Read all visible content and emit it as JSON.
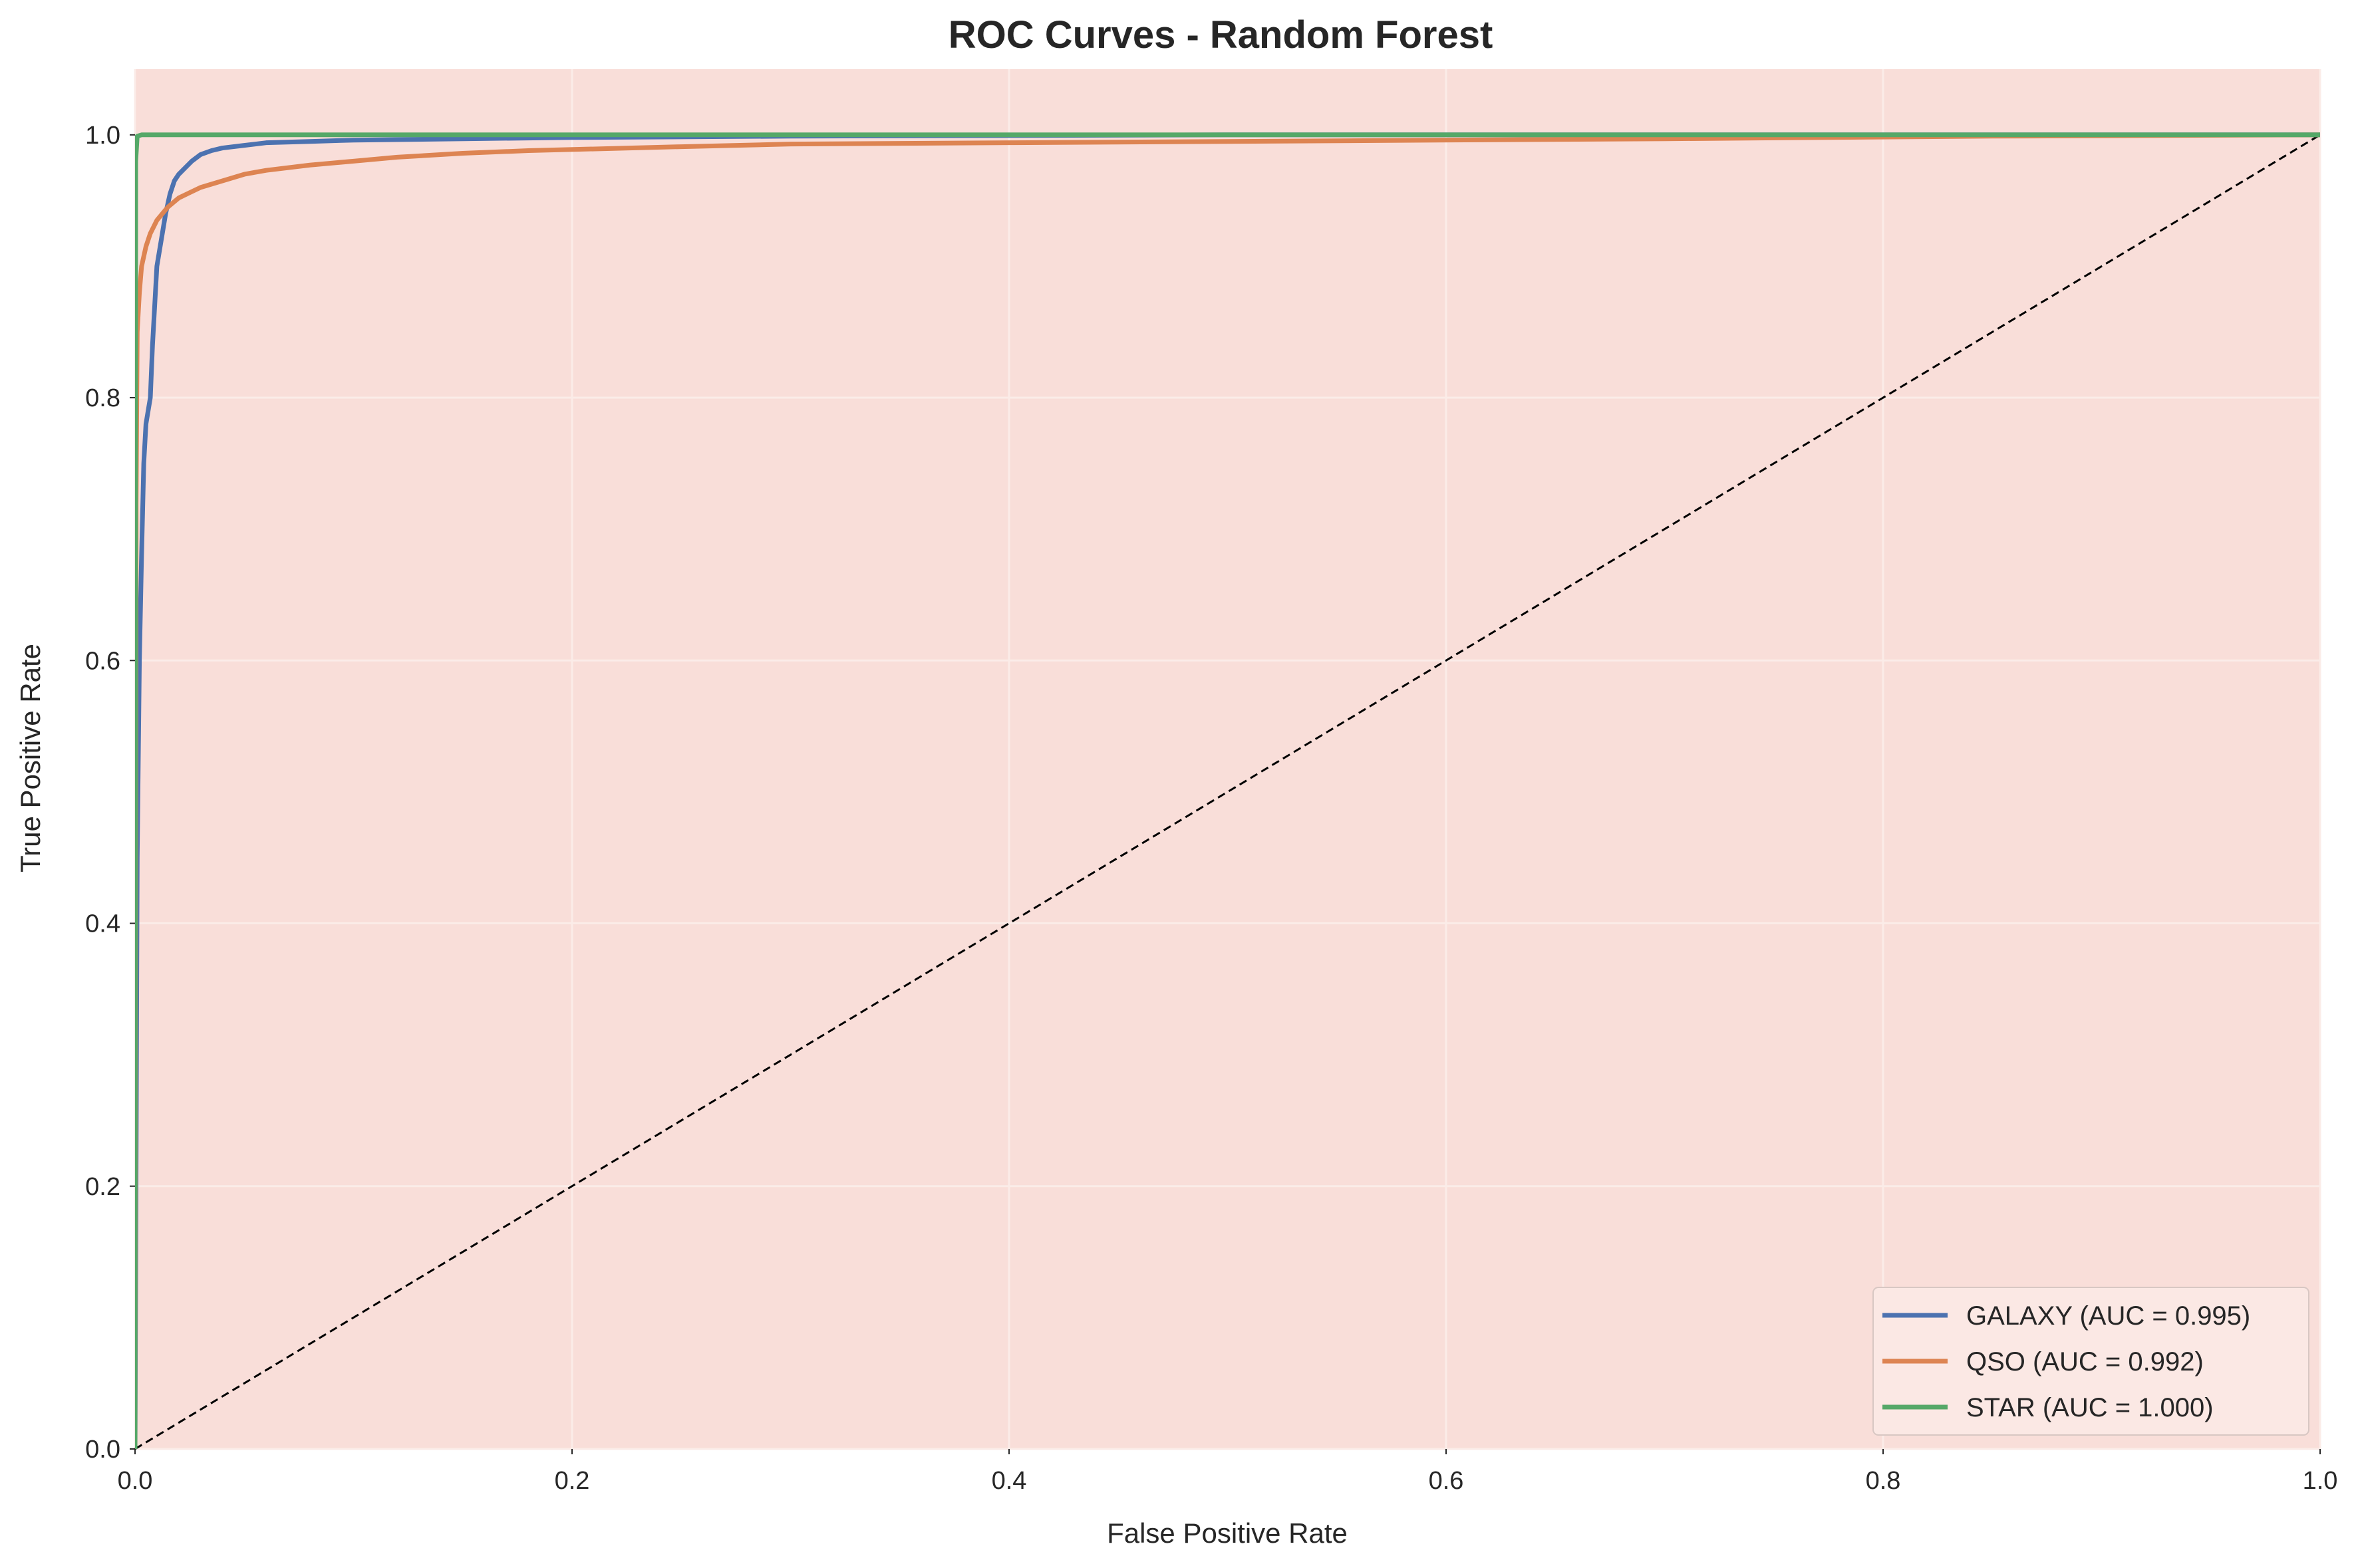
{
  "chart_data": {
    "type": "line",
    "title": "ROC Curves - Random Forest",
    "xlabel": "False Positive Rate",
    "ylabel": "True Positive Rate",
    "xlim": [
      0.0,
      1.0
    ],
    "ylim": [
      0.0,
      1.05
    ],
    "xticks": [
      0.0,
      0.2,
      0.4,
      0.6,
      0.8,
      1.0
    ],
    "xtick_labels": [
      "0.0",
      "0.2",
      "0.4",
      "0.6",
      "0.8",
      "1.0"
    ],
    "yticks": [
      0.0,
      0.2,
      0.4,
      0.6,
      0.8,
      1.0
    ],
    "ytick_labels": [
      "0.0",
      "0.2",
      "0.4",
      "0.6",
      "0.8",
      "1.0"
    ],
    "grid": true,
    "legend_position": "lower-right",
    "background_color": "#f9ded9",
    "grid_color": "#fbece8",
    "series": [
      {
        "name": "GALAXY (AUC = 0.995)",
        "color": "#4c72b0",
        "points": [
          [
            0,
            0
          ],
          [
            0.001,
            0.45
          ],
          [
            0.002,
            0.6
          ],
          [
            0.003,
            0.68
          ],
          [
            0.004,
            0.75
          ],
          [
            0.005,
            0.78
          ],
          [
            0.006,
            0.79
          ],
          [
            0.007,
            0.8
          ],
          [
            0.008,
            0.84
          ],
          [
            0.009,
            0.87
          ],
          [
            0.01,
            0.9
          ],
          [
            0.012,
            0.92
          ],
          [
            0.014,
            0.94
          ],
          [
            0.016,
            0.955
          ],
          [
            0.018,
            0.965
          ],
          [
            0.02,
            0.97
          ],
          [
            0.023,
            0.975
          ],
          [
            0.026,
            0.98
          ],
          [
            0.03,
            0.985
          ],
          [
            0.035,
            0.988
          ],
          [
            0.04,
            0.99
          ],
          [
            0.05,
            0.992
          ],
          [
            0.06,
            0.994
          ],
          [
            0.08,
            0.995
          ],
          [
            0.1,
            0.996
          ],
          [
            0.15,
            0.997
          ],
          [
            0.2,
            0.998
          ],
          [
            0.3,
            0.999
          ],
          [
            0.5,
            1.0
          ],
          [
            1.0,
            1.0
          ]
        ]
      },
      {
        "name": "QSO (AUC = 0.992)",
        "color": "#dd8452",
        "points": [
          [
            0,
            0
          ],
          [
            0.0005,
            0.72
          ],
          [
            0.001,
            0.85
          ],
          [
            0.002,
            0.88
          ],
          [
            0.003,
            0.9
          ],
          [
            0.005,
            0.915
          ],
          [
            0.007,
            0.925
          ],
          [
            0.01,
            0.935
          ],
          [
            0.015,
            0.945
          ],
          [
            0.02,
            0.952
          ],
          [
            0.025,
            0.956
          ],
          [
            0.03,
            0.96
          ],
          [
            0.04,
            0.965
          ],
          [
            0.05,
            0.97
          ],
          [
            0.06,
            0.973
          ],
          [
            0.08,
            0.977
          ],
          [
            0.1,
            0.98
          ],
          [
            0.12,
            0.983
          ],
          [
            0.15,
            0.986
          ],
          [
            0.18,
            0.988
          ],
          [
            0.25,
            0.991
          ],
          [
            0.3,
            0.993
          ],
          [
            0.4,
            0.994
          ],
          [
            0.5,
            0.995
          ],
          [
            0.7,
            0.997
          ],
          [
            0.85,
            0.999
          ],
          [
            1.0,
            1.0
          ]
        ]
      },
      {
        "name": "STAR (AUC = 1.000)",
        "color": "#55a868",
        "points": [
          [
            0,
            0
          ],
          [
            0.0003,
            0.98
          ],
          [
            0.001,
            0.999
          ],
          [
            0.003,
            1.0
          ],
          [
            1.0,
            1.0
          ]
        ]
      }
    ],
    "reference_line": {
      "points": [
        [
          0,
          0
        ],
        [
          1,
          1
        ]
      ],
      "color": "#000000",
      "style": "dashed"
    }
  }
}
